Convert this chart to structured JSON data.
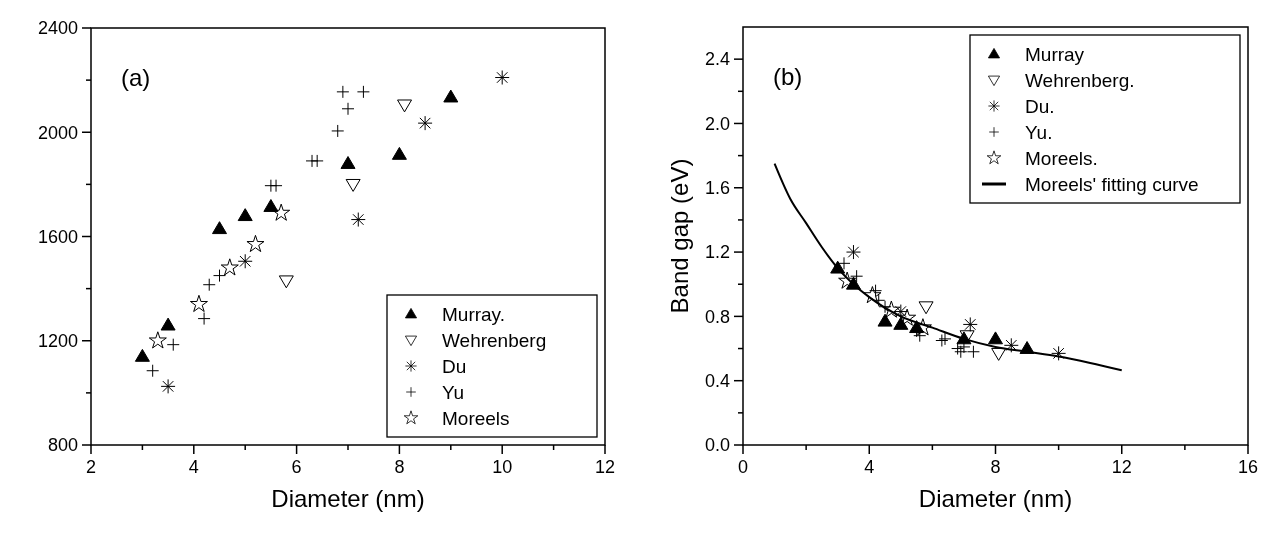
{
  "chart_data": [
    {
      "type": "scatter",
      "annotations": [
        "(a)"
      ],
      "xlabel": "Diameter (nm)",
      "xlim": [
        2,
        12
      ],
      "xticks": [
        2,
        {
          "value": 3,
          "label": null
        },
        4,
        {
          "value": 5,
          "label": null
        },
        6,
        {
          "value": 7,
          "label": null
        },
        8,
        {
          "value": 9,
          "label": null
        },
        10,
        {
          "value": 11,
          "label": null
        },
        12
      ],
      "ylim": [
        800,
        2400
      ],
      "yticks": [
        800,
        {
          "value": 1000,
          "label": null
        },
        1200,
        {
          "value": 1400,
          "label": null
        },
        1600,
        {
          "value": 1800,
          "label": null
        },
        2000,
        {
          "value": 2200,
          "label": null
        },
        2400
      ],
      "legend": "bottom right",
      "series": [
        {
          "name": "Murray.",
          "color": "#000000",
          "marker": "triangle",
          "x": [
            3,
            3.5,
            4.5,
            5,
            5.5,
            7,
            8,
            9
          ],
          "values": [
            1140,
            1260,
            1630,
            1680,
            1715,
            1880,
            1915,
            2135
          ]
        },
        {
          "name": "Wehrenberg",
          "color": "#000000",
          "marker": "triangle-down",
          "x": [
            5.8,
            7.1,
            8.1
          ],
          "values": [
            1430,
            1800,
            2105
          ]
        },
        {
          "name": "Du",
          "color": "#000000",
          "x": [
            3.5,
            5,
            7.2,
            8.5,
            10
          ],
          "values": [
            1025,
            1505,
            1665,
            2035,
            2210
          ]
        },
        {
          "name": "Yu",
          "color": "#000000",
          "marker": "cross",
          "x": [
            3.2,
            3.6,
            4.2,
            4.3,
            4.5,
            5.5,
            5.6,
            6.3,
            6.4,
            6.8,
            6.9,
            7.0,
            7.3
          ],
          "values": [
            1085,
            1185,
            1285,
            1415,
            1450,
            1795,
            1795,
            1890,
            1890,
            2005,
            2155,
            2090,
            2155
          ]
        },
        {
          "name": "Moreels",
          "color": "#000000",
          "marker": "star",
          "x": [
            3.3,
            4.1,
            4.7,
            5.2,
            5.7
          ],
          "values": [
            1200,
            1340,
            1480,
            1570,
            1690
          ]
        }
      ]
    },
    {
      "type": "scatter",
      "annotations": [
        "(b)"
      ],
      "xlabel": "Diameter (nm)",
      "ylabel": "Band gap (eV)",
      "xlim": [
        0,
        16
      ],
      "xticks": [
        0,
        {
          "value": 2,
          "label": null
        },
        4,
        {
          "value": 6,
          "label": null
        },
        8,
        {
          "value": 10,
          "label": null
        },
        12,
        {
          "value": 14,
          "label": null
        },
        16
      ],
      "ylim": [
        0,
        2.6
      ],
      "yticks": [
        {
          "value": 0,
          "label": "0.0"
        },
        {
          "value": 0.2,
          "label": null
        },
        0.4,
        {
          "value": 0.6,
          "label": null
        },
        0.8,
        {
          "value": 1,
          "label": null
        },
        1.2,
        {
          "value": 1.4,
          "label": null
        },
        1.6,
        {
          "value": 1.8,
          "label": null
        },
        {
          "value": 2,
          "label": "2.0"
        },
        {
          "value": 2.2,
          "label": null
        },
        2.4
      ],
      "legend": "top right",
      "series": [
        {
          "name": "Murray",
          "color": "#000000",
          "marker": "triangle",
          "x": [
            3,
            3.5,
            4.5,
            5,
            5.5,
            7,
            8,
            9
          ],
          "values": [
            1.1,
            1.0,
            0.77,
            0.75,
            0.73,
            0.66,
            0.66,
            0.6
          ]
        },
        {
          "name": "Wehrenberg.",
          "color": "#000000",
          "marker": "triangle-down",
          "x": [
            5.8,
            7.1,
            8.1
          ],
          "values": [
            0.86,
            0.68,
            0.57
          ]
        },
        {
          "name": "Du.",
          "color": "#000000",
          "x": [
            3.5,
            5,
            7.2,
            8.5,
            10
          ],
          "values": [
            1.2,
            0.83,
            0.75,
            0.62,
            0.57
          ]
        },
        {
          "name": "Yu.",
          "color": "#000000",
          "marker": "cross",
          "x": [
            3.2,
            3.6,
            4.2,
            4.3,
            4.5,
            5.5,
            5.6,
            6.3,
            6.4,
            6.8,
            6.9,
            7.0,
            7.3
          ],
          "values": [
            1.13,
            1.05,
            0.96,
            0.9,
            0.86,
            0.71,
            0.68,
            0.65,
            0.66,
            0.6,
            0.58,
            0.61,
            0.58
          ]
        },
        {
          "name": "Moreels.",
          "color": "#000000",
          "marker": "star",
          "x": [
            3.3,
            4.1,
            4.7,
            5.2,
            5.7
          ],
          "values": [
            1.02,
            0.93,
            0.84,
            0.79,
            0.73
          ]
        },
        {
          "name": "Moreels' fitting curve",
          "type": "line",
          "color": "#000000",
          "line_style": "solid",
          "x": [
            1,
            1.5,
            2,
            2.5,
            3,
            3.5,
            4,
            5,
            6,
            7,
            8,
            9,
            10,
            11,
            12
          ],
          "values": [
            1.75,
            1.53,
            1.38,
            1.23,
            1.1,
            1.0,
            0.92,
            0.8,
            0.73,
            0.66,
            0.61,
            0.58,
            0.55,
            0.51,
            0.465
          ]
        }
      ]
    }
  ]
}
